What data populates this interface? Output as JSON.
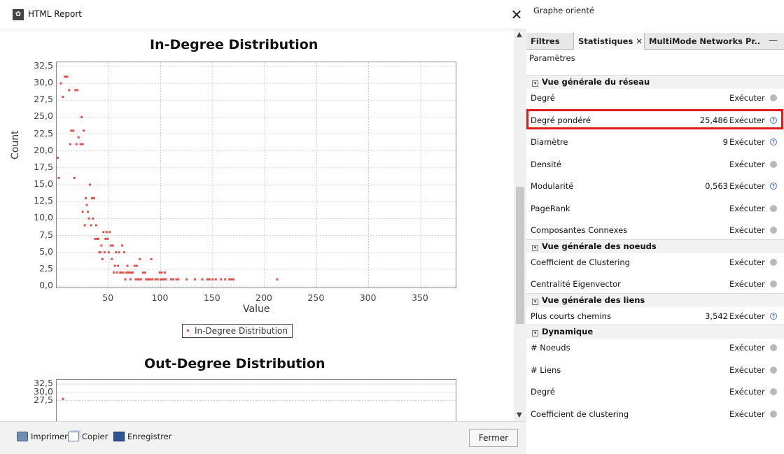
{
  "report": {
    "title": "HTML Report",
    "close_glyph": "✕",
    "app_icon": "report-logo-icon",
    "buttons": {
      "print": "Imprimer",
      "copy": "Copier",
      "save": "Enregistrer",
      "close": "Fermer"
    }
  },
  "chart_data": [
    {
      "type": "scatter",
      "title": "In-Degree Distribution",
      "xlabel": "Value",
      "ylabel": "Count",
      "xlim": [
        0,
        385
      ],
      "ylim": [
        0,
        32.5
      ],
      "x_ticks": [
        "50",
        "100",
        "150",
        "200",
        "250",
        "300",
        "350"
      ],
      "y_ticks": [
        "0,0",
        "2,5",
        "5,0",
        "7,5",
        "10,0",
        "12,5",
        "15,0",
        "17,5",
        "20,0",
        "22,5",
        "25,0",
        "27,5",
        "30,0",
        "32,5"
      ],
      "grid": true,
      "legend": "bottom-center",
      "color": "#e0504b",
      "series": [
        {
          "name": "In-Degree Distribution",
          "points": [
            [
              1,
              19
            ],
            [
              2,
              16
            ],
            [
              4,
              30
            ],
            [
              6,
              28
            ],
            [
              8,
              31
            ],
            [
              10,
              31
            ],
            [
              12,
              29
            ],
            [
              13,
              21
            ],
            [
              14,
              23
            ],
            [
              16,
              23
            ],
            [
              17,
              16
            ],
            [
              18,
              29
            ],
            [
              19,
              21
            ],
            [
              20,
              29
            ],
            [
              21,
              22
            ],
            [
              23,
              21
            ],
            [
              24,
              25
            ],
            [
              25,
              21
            ],
            [
              25,
              11
            ],
            [
              26,
              23
            ],
            [
              27,
              9
            ],
            [
              28,
              13
            ],
            [
              29,
              12
            ],
            [
              30,
              11
            ],
            [
              31,
              10
            ],
            [
              32,
              15
            ],
            [
              33,
              9
            ],
            [
              34,
              13
            ],
            [
              35,
              10
            ],
            [
              36,
              13
            ],
            [
              37,
              7
            ],
            [
              38,
              9
            ],
            [
              39,
              7
            ],
            [
              40,
              7
            ],
            [
              41,
              5
            ],
            [
              42,
              5
            ],
            [
              43,
              6
            ],
            [
              44,
              4
            ],
            [
              45,
              8
            ],
            [
              46,
              5
            ],
            [
              47,
              7
            ],
            [
              48,
              8
            ],
            [
              49,
              7
            ],
            [
              50,
              5
            ],
            [
              51,
              8
            ],
            [
              52,
              6
            ],
            [
              53,
              4
            ],
            [
              54,
              6
            ],
            [
              55,
              2
            ],
            [
              56,
              3
            ],
            [
              57,
              5
            ],
            [
              58,
              2
            ],
            [
              59,
              3
            ],
            [
              60,
              5
            ],
            [
              61,
              2
            ],
            [
              62,
              2
            ],
            [
              63,
              6
            ],
            [
              64,
              2
            ],
            [
              65,
              5
            ],
            [
              66,
              1
            ],
            [
              67,
              2
            ],
            [
              68,
              3
            ],
            [
              69,
              2
            ],
            [
              70,
              2
            ],
            [
              71,
              1
            ],
            [
              72,
              2
            ],
            [
              73,
              2
            ],
            [
              75,
              3
            ],
            [
              76,
              1
            ],
            [
              77,
              3
            ],
            [
              78,
              1
            ],
            [
              79,
              1
            ],
            [
              80,
              4
            ],
            [
              81,
              1
            ],
            [
              83,
              2
            ],
            [
              85,
              2
            ],
            [
              86,
              1
            ],
            [
              87,
              1
            ],
            [
              88,
              1
            ],
            [
              89,
              1
            ],
            [
              90,
              1
            ],
            [
              91,
              4
            ],
            [
              92,
              1
            ],
            [
              95,
              1
            ],
            [
              97,
              1
            ],
            [
              99,
              2
            ],
            [
              100,
              1
            ],
            [
              101,
              2
            ],
            [
              102,
              1
            ],
            [
              103,
              1
            ],
            [
              104,
              2
            ],
            [
              105,
              1
            ],
            [
              110,
              1
            ],
            [
              112,
              1
            ],
            [
              115,
              1
            ],
            [
              117,
              1
            ],
            [
              125,
              1
            ],
            [
              133,
              1
            ],
            [
              140,
              1
            ],
            [
              145,
              1
            ],
            [
              147,
              1
            ],
            [
              150,
              1
            ],
            [
              153,
              1
            ],
            [
              158,
              1
            ],
            [
              162,
              1
            ],
            [
              166,
              1
            ],
            [
              168,
              1
            ],
            [
              170,
              1
            ],
            [
              212,
              1
            ]
          ]
        }
      ]
    },
    {
      "type": "scatter",
      "title": "Out-Degree Distribution",
      "xlabel": "",
      "ylabel": "",
      "ylim": [
        0,
        32.5
      ],
      "y_ticks_visible": [
        "32,5",
        "30,0",
        "27,5"
      ],
      "grid": true,
      "color": "#e0504b",
      "series": [
        {
          "points": [
            [
              6,
              28
            ]
          ]
        }
      ]
    }
  ],
  "panel": {
    "graph_type": "Graphe orienté",
    "tabs": [
      {
        "label": "Filtres",
        "active": false
      },
      {
        "label": "Statistiques",
        "active": true,
        "close_glyph": "✕"
      },
      {
        "label": "MultiMode Networks Pr...",
        "active": false
      }
    ],
    "minimize_glyph": "—",
    "params_label": "Paramètres",
    "execute_label": "Exécuter",
    "sections": [
      {
        "label": "Vue générale du réseau",
        "items": [
          {
            "name": "Degré",
            "value": "",
            "icon": "gray-dot"
          },
          {
            "name": "Degré pondéré",
            "value": "25,486",
            "icon": "info",
            "highlighted": true
          },
          {
            "name": "Diamètre",
            "value": "9",
            "icon": "info"
          },
          {
            "name": "Densité",
            "value": "",
            "icon": "gray-dot"
          },
          {
            "name": "Modularité",
            "value": "0,563",
            "icon": "info"
          },
          {
            "name": "PageRank",
            "value": "",
            "icon": "gray-dot"
          },
          {
            "name": "Composantes Connexes",
            "value": "",
            "icon": "gray-dot"
          }
        ]
      },
      {
        "label": "Vue générale des noeuds",
        "items": [
          {
            "name": "Coefficient de Clustering",
            "value": "",
            "icon": "gray-dot"
          },
          {
            "name": "Centralité Eigenvector",
            "value": "",
            "icon": "gray-dot"
          }
        ]
      },
      {
        "label": "Vue générale des liens",
        "items": [
          {
            "name": "Plus courts chemins",
            "value": "3,542",
            "icon": "info"
          }
        ]
      },
      {
        "label": "Dynamique",
        "items": [
          {
            "name": "# Noeuds",
            "value": "",
            "icon": "gray-dot"
          },
          {
            "name": "# Liens",
            "value": "",
            "icon": "gray-dot"
          },
          {
            "name": "Degré",
            "value": "",
            "icon": "gray-dot"
          },
          {
            "name": "Coefficient de clustering",
            "value": "",
            "icon": "gray-dot"
          }
        ]
      }
    ],
    "colors": {
      "highlight": "#e01b1b",
      "info_icon": "#4a6fd0"
    }
  }
}
